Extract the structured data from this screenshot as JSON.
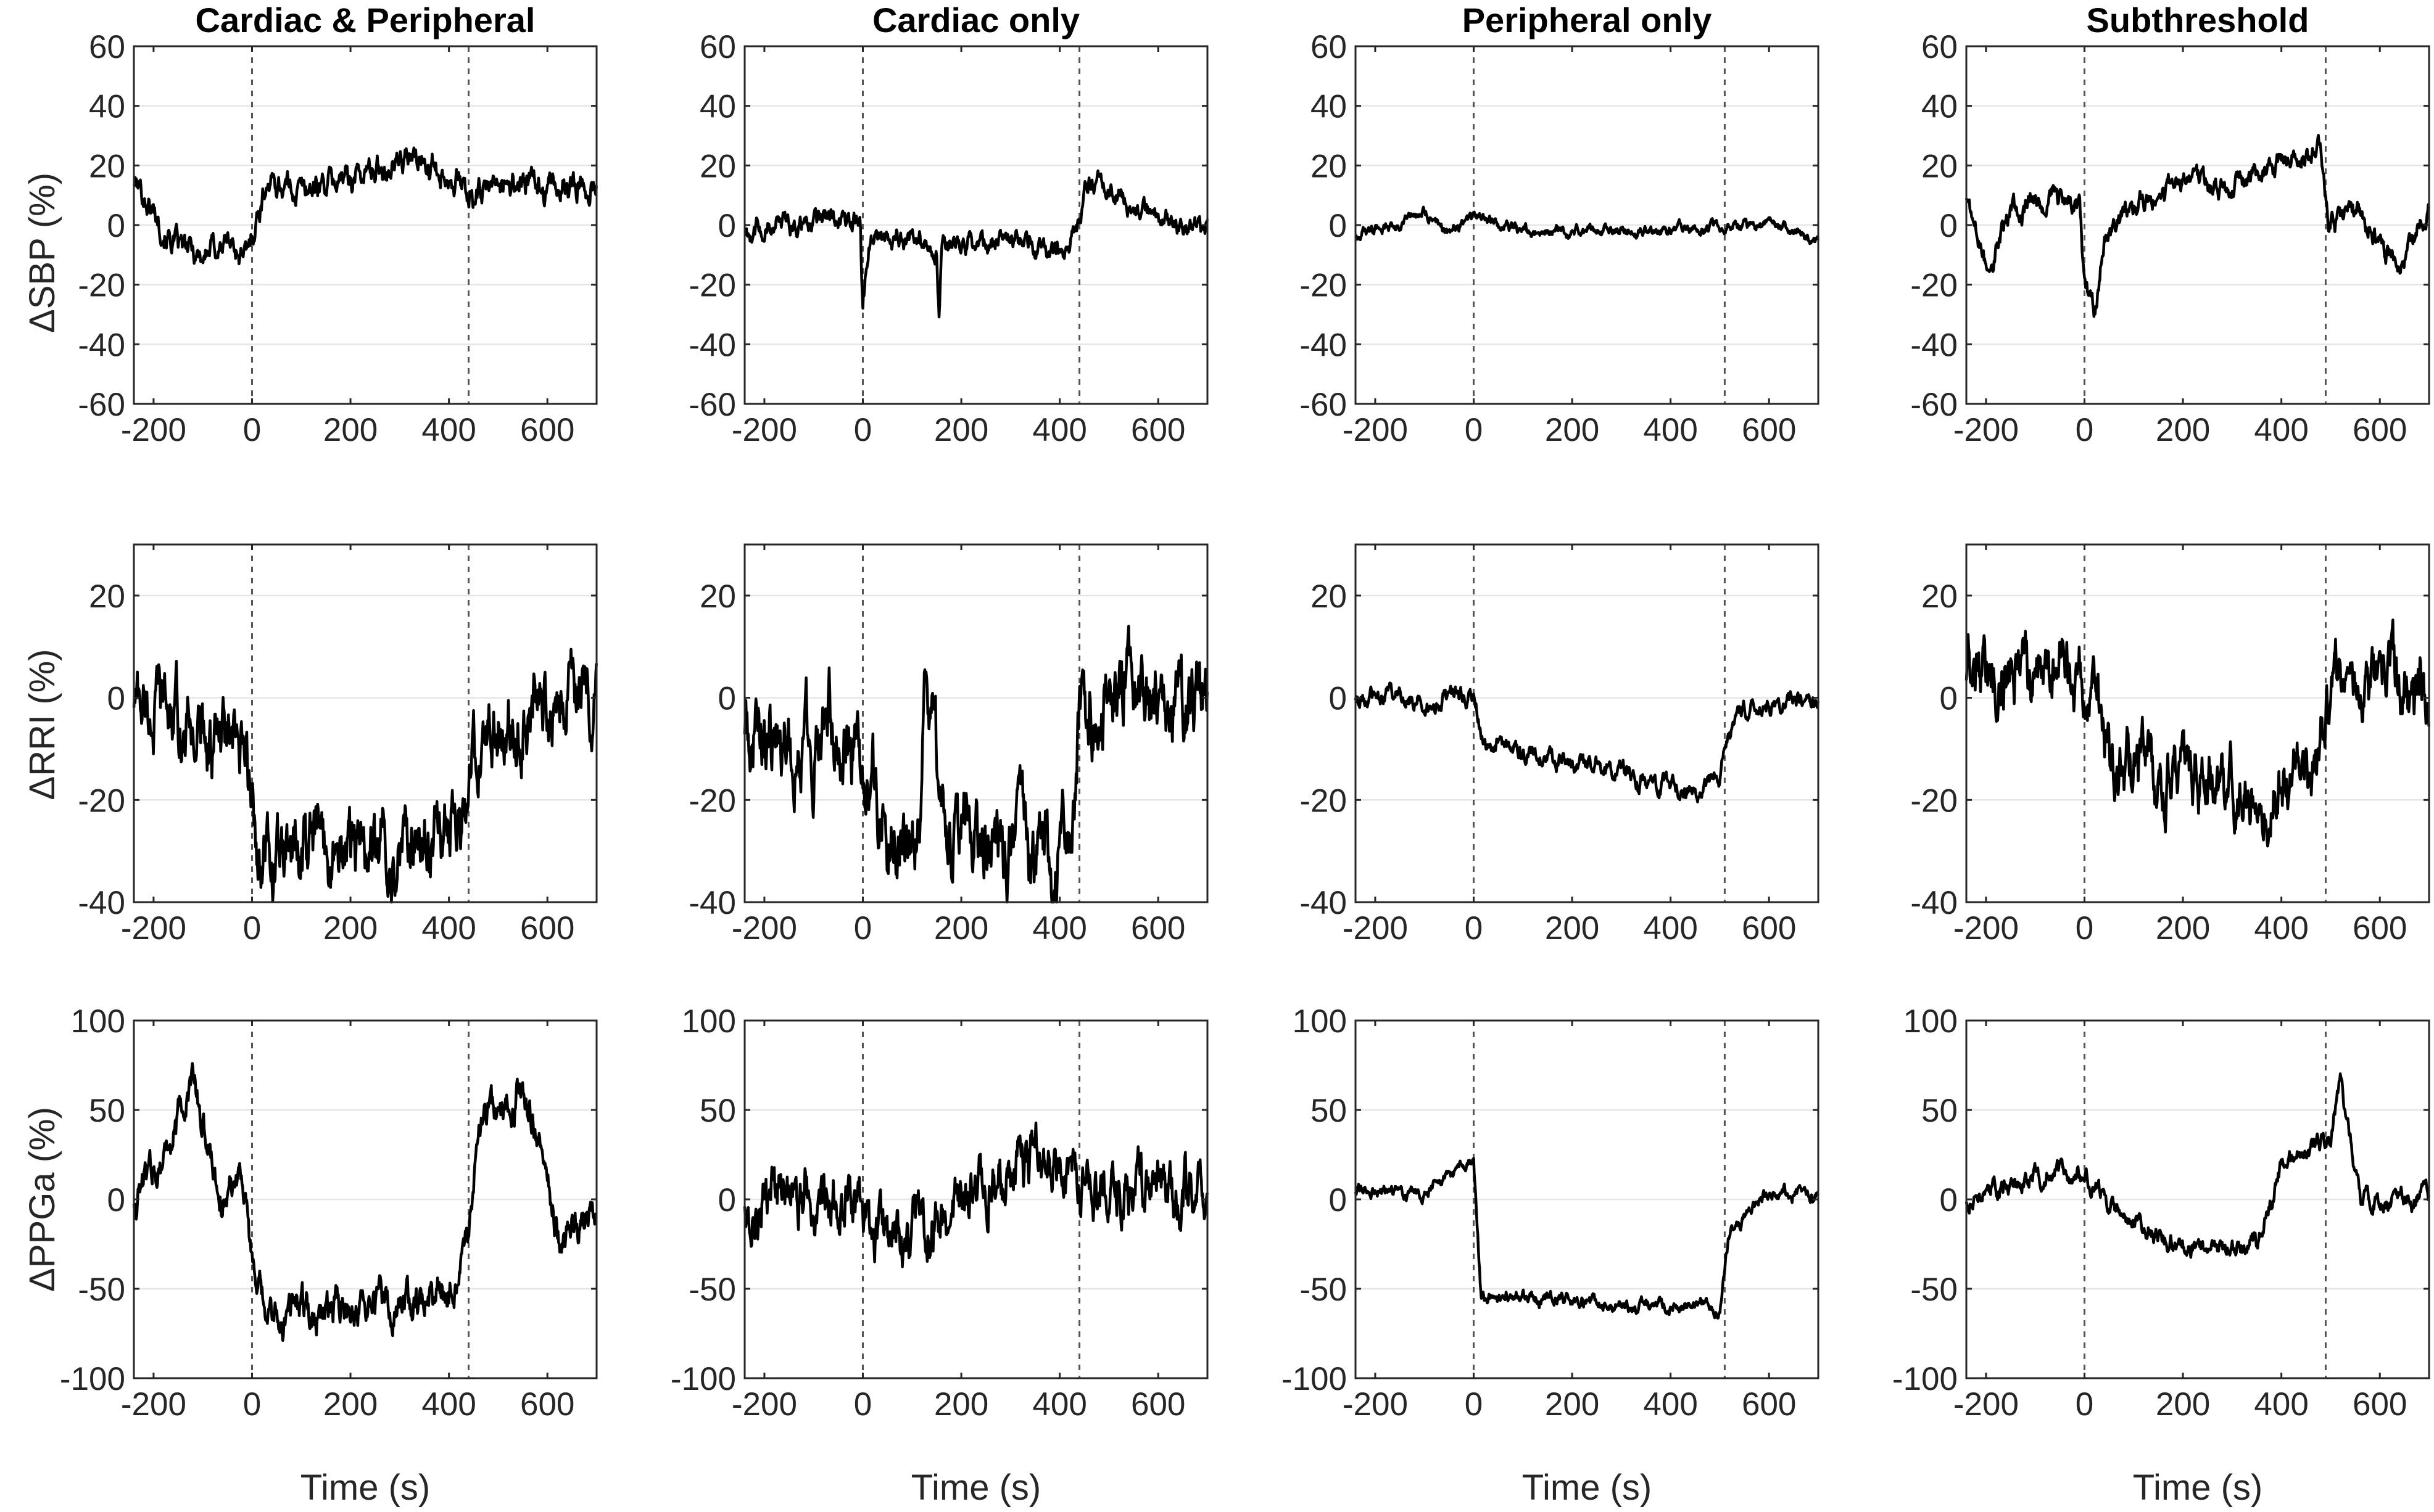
{
  "chart_data": {
    "type": "line",
    "columns": [
      "Cardiac & Peripheral",
      "Cardiac only",
      "Peripheral only",
      "Subthreshold"
    ],
    "rows": [
      {
        "ylabel": "ΔSBP (%)",
        "ylim": [
          -60,
          60
        ],
        "yticks": [
          -60,
          -40,
          -20,
          0,
          20,
          40,
          60
        ]
      },
      {
        "ylabel": "ΔRRI (%)",
        "ylim": [
          -40,
          30
        ],
        "yticks": [
          -40,
          -20,
          0,
          20
        ]
      },
      {
        "ylabel": "ΔPPGa (%)",
        "ylim": [
          -100,
          100
        ],
        "yticks": [
          -100,
          -50,
          0,
          50,
          100
        ]
      }
    ],
    "xlabel": "Time (s)",
    "xlim": [
      -240,
      700
    ],
    "xticks": [
      -200,
      0,
      200,
      400,
      600
    ],
    "grid": "horizontal",
    "markers": [
      {
        "column": "Cardiac & Peripheral",
        "times": [
          0,
          440
        ]
      },
      {
        "column": "Cardiac only",
        "times": [
          0,
          440
        ]
      },
      {
        "column": "Peripheral only",
        "times": [
          0,
          510
        ]
      },
      {
        "column": "Subthreshold",
        "times": [
          0,
          490
        ]
      }
    ],
    "series_color": "#000000",
    "panels": [
      {
        "column": "Cardiac & Peripheral",
        "row": "ΔSBP (%)",
        "noise": 5,
        "points": [
          [
            -240,
            15
          ],
          [
            -200,
            5
          ],
          [
            -150,
            -8
          ],
          [
            -100,
            -10
          ],
          [
            -50,
            -5
          ],
          [
            -10,
            -12
          ],
          [
            0,
            -3
          ],
          [
            30,
            15
          ],
          [
            100,
            12
          ],
          [
            200,
            16
          ],
          [
            300,
            22
          ],
          [
            380,
            20
          ],
          [
            430,
            14
          ],
          [
            440,
            8
          ],
          [
            520,
            15
          ],
          [
            600,
            12
          ],
          [
            700,
            14
          ]
        ]
      },
      {
        "column": "Cardiac only",
        "row": "ΔSBP (%)",
        "noise": 4,
        "points": [
          [
            -240,
            -2
          ],
          [
            -150,
            0
          ],
          [
            -50,
            3
          ],
          [
            -5,
            0
          ],
          [
            0,
            -30
          ],
          [
            12,
            -5
          ],
          [
            100,
            -5
          ],
          [
            150,
            -8
          ],
          [
            155,
            -30
          ],
          [
            160,
            -7
          ],
          [
            250,
            -6
          ],
          [
            420,
            -8
          ],
          [
            440,
            0
          ],
          [
            460,
            15
          ],
          [
            560,
            5
          ],
          [
            700,
            -3
          ]
        ]
      },
      {
        "column": "Peripheral only",
        "row": "ΔSBP (%)",
        "noise": 2,
        "points": [
          [
            -240,
            -3
          ],
          [
            -150,
            0
          ],
          [
            -100,
            5
          ],
          [
            -50,
            -3
          ],
          [
            0,
            3
          ],
          [
            100,
            -2
          ],
          [
            300,
            -2
          ],
          [
            500,
            -1
          ],
          [
            600,
            0
          ],
          [
            700,
            -5
          ]
        ]
      },
      {
        "column": "Subthreshold",
        "row": "ΔSBP (%)",
        "noise": 4,
        "points": [
          [
            -240,
            10
          ],
          [
            -200,
            -15
          ],
          [
            -150,
            3
          ],
          [
            -60,
            10
          ],
          [
            -10,
            5
          ],
          [
            0,
            -22
          ],
          [
            20,
            -30
          ],
          [
            40,
            -5
          ],
          [
            100,
            5
          ],
          [
            200,
            15
          ],
          [
            300,
            12
          ],
          [
            400,
            20
          ],
          [
            480,
            28
          ],
          [
            495,
            0
          ],
          [
            550,
            5
          ],
          [
            640,
            -15
          ],
          [
            700,
            5
          ]
        ]
      },
      {
        "column": "Cardiac & Peripheral",
        "row": "ΔRRI (%)",
        "noise": 8,
        "points": [
          [
            -240,
            0
          ],
          [
            -150,
            -5
          ],
          [
            -50,
            -10
          ],
          [
            -10,
            -15
          ],
          [
            20,
            -33
          ],
          [
            100,
            -30
          ],
          [
            250,
            -30
          ],
          [
            420,
            -25
          ],
          [
            440,
            -20
          ],
          [
            460,
            -8
          ],
          [
            600,
            0
          ],
          [
            700,
            5
          ]
        ]
      },
      {
        "column": "Cardiac only",
        "row": "ΔRRI (%)",
        "noise": 9,
        "points": [
          [
            -240,
            -5
          ],
          [
            -150,
            -10
          ],
          [
            -50,
            -5
          ],
          [
            0,
            -15
          ],
          [
            50,
            -25
          ],
          [
            110,
            -28
          ],
          [
            130,
            5
          ],
          [
            160,
            -28
          ],
          [
            300,
            -30
          ],
          [
            420,
            -33
          ],
          [
            440,
            -5
          ],
          [
            500,
            0
          ],
          [
            700,
            0
          ]
        ]
      },
      {
        "column": "Peripheral only",
        "row": "ΔRRI (%)",
        "noise": 2,
        "points": [
          [
            -240,
            0
          ],
          [
            -100,
            0
          ],
          [
            0,
            0
          ],
          [
            20,
            -8
          ],
          [
            150,
            -12
          ],
          [
            300,
            -15
          ],
          [
            450,
            -18
          ],
          [
            500,
            -15
          ],
          [
            540,
            -2
          ],
          [
            600,
            -2
          ],
          [
            700,
            0
          ]
        ]
      },
      {
        "column": "Subthreshold",
        "row": "ΔRRI (%)",
        "noise": 7,
        "points": [
          [
            -240,
            5
          ],
          [
            -100,
            5
          ],
          [
            0,
            5
          ],
          [
            50,
            -10
          ],
          [
            150,
            -15
          ],
          [
            300,
            -18
          ],
          [
            470,
            -15
          ],
          [
            500,
            5
          ],
          [
            600,
            5
          ],
          [
            680,
            0
          ],
          [
            700,
            3
          ]
        ]
      },
      {
        "column": "Cardiac & Peripheral",
        "row": "ΔPPGa (%)",
        "noise": 12,
        "points": [
          [
            -240,
            0
          ],
          [
            -150,
            40
          ],
          [
            -120,
            65
          ],
          [
            -60,
            0
          ],
          [
            -20,
            20
          ],
          [
            0,
            -40
          ],
          [
            30,
            -70
          ],
          [
            100,
            -60
          ],
          [
            200,
            -60
          ],
          [
            300,
            -60
          ],
          [
            420,
            -50
          ],
          [
            440,
            -30
          ],
          [
            460,
            40
          ],
          [
            560,
            60
          ],
          [
            620,
            -20
          ],
          [
            700,
            -10
          ]
        ]
      },
      {
        "column": "Cardiac only",
        "row": "ΔPPGa (%)",
        "noise": 18,
        "points": [
          [
            -240,
            0
          ],
          [
            -100,
            5
          ],
          [
            -20,
            0
          ],
          [
            0,
            -20
          ],
          [
            100,
            -20
          ],
          [
            200,
            0
          ],
          [
            300,
            15
          ],
          [
            400,
            15
          ],
          [
            500,
            5
          ],
          [
            700,
            0
          ]
        ]
      },
      {
        "column": "Peripheral only",
        "row": "ΔPPGa (%)",
        "noise": 4,
        "points": [
          [
            -240,
            5
          ],
          [
            -100,
            5
          ],
          [
            -10,
            20
          ],
          [
            0,
            20
          ],
          [
            15,
            -55
          ],
          [
            150,
            -55
          ],
          [
            300,
            -60
          ],
          [
            500,
            -60
          ],
          [
            520,
            -20
          ],
          [
            600,
            5
          ],
          [
            700,
            0
          ]
        ]
      },
      {
        "column": "Subthreshold",
        "row": "ΔPPGa (%)",
        "noise": 6,
        "points": [
          [
            -240,
            0
          ],
          [
            -150,
            10
          ],
          [
            -50,
            15
          ],
          [
            0,
            15
          ],
          [
            60,
            -5
          ],
          [
            150,
            -20
          ],
          [
            250,
            -30
          ],
          [
            350,
            -25
          ],
          [
            400,
            20
          ],
          [
            500,
            35
          ],
          [
            520,
            65
          ],
          [
            560,
            0
          ],
          [
            700,
            0
          ]
        ]
      }
    ]
  }
}
